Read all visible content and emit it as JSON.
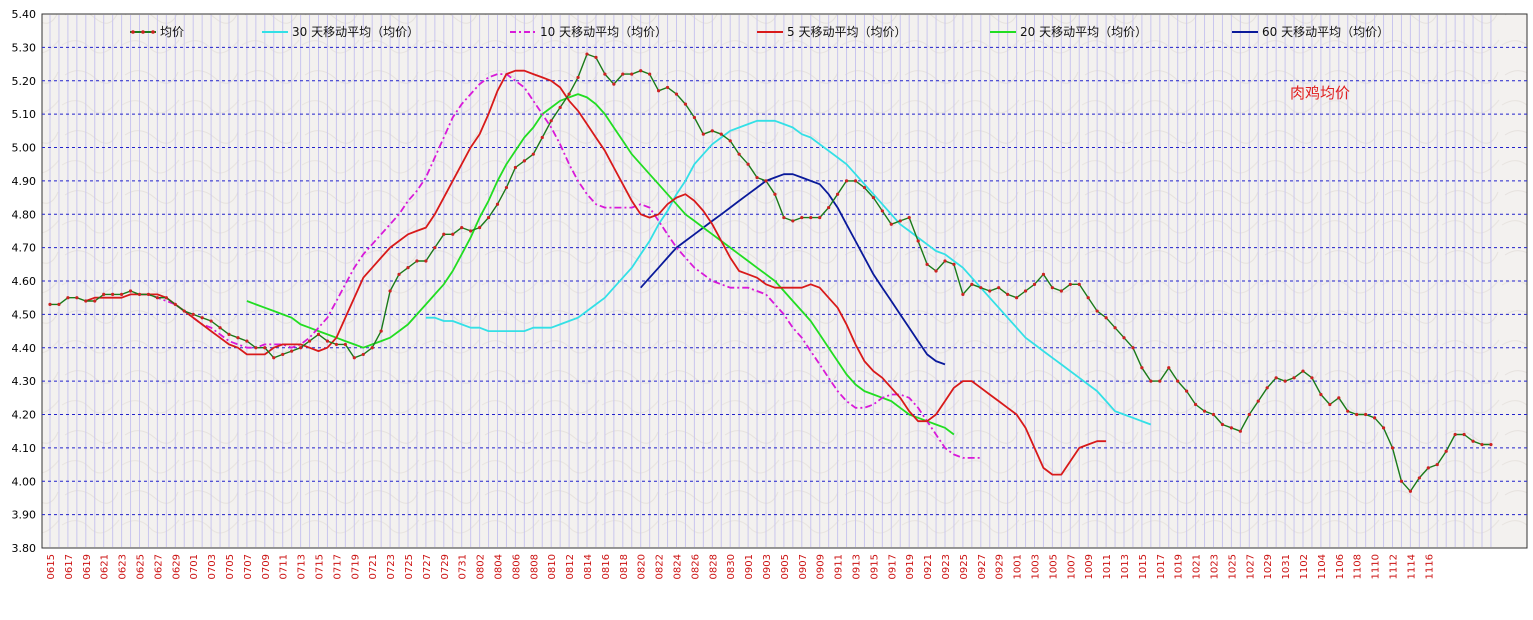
{
  "chart_data": {
    "type": "line",
    "annotation": "肉鸡均价",
    "y_ticks": [
      "5.40",
      "5.30",
      "5.20",
      "5.10",
      "5.00",
      "4.90",
      "4.80",
      "4.70",
      "4.60",
      "4.50",
      "4.40",
      "4.30",
      "4.20",
      "4.10",
      "4.00",
      "3.90",
      "3.80"
    ],
    "ylim": [
      3.8,
      5.4
    ],
    "grid": true,
    "legend_position": "top",
    "x_labels": [
      "0615",
      "0617",
      "0619",
      "0621",
      "0623",
      "0625",
      "0627",
      "0629",
      "0701",
      "0703",
      "0705",
      "0707",
      "0709",
      "0711",
      "0713",
      "0715",
      "0717",
      "0719",
      "0721",
      "0723",
      "0725",
      "0727",
      "0729",
      "0731",
      "0802",
      "0804",
      "0806",
      "0808",
      "0810",
      "0812",
      "0814",
      "0816",
      "0818",
      "0820",
      "0822",
      "0824",
      "0826",
      "0828",
      "0830",
      "0901",
      "0903",
      "0905",
      "0907",
      "0909",
      "0911",
      "0913",
      "0915",
      "0917",
      "0919",
      "0921",
      "0923",
      "0925",
      "0927",
      "0929",
      "1001",
      "1003",
      "1005",
      "1007",
      "1009",
      "1011",
      "1013",
      "1015",
      "1017",
      "1019",
      "1021",
      "1023",
      "1025",
      "1027",
      "1029",
      "1031",
      "1102",
      "1104",
      "1106",
      "1108",
      "1110",
      "1112",
      "1114",
      "1116"
    ],
    "series": [
      {
        "name": "均价",
        "color": "#1a7a1a",
        "style": "line-marker",
        "values": [
          4.53,
          4.53,
          4.55,
          4.55,
          4.54,
          4.54,
          4.56,
          4.56,
          4.56,
          4.57,
          4.56,
          4.56,
          4.55,
          4.55,
          4.53,
          4.51,
          4.5,
          4.49,
          4.48,
          4.46,
          4.44,
          4.43,
          4.42,
          4.4,
          4.4,
          4.37,
          4.38,
          4.39,
          4.4,
          4.42,
          4.44,
          4.42,
          4.41,
          4.41,
          4.37,
          4.38,
          4.4,
          4.45,
          4.57,
          4.62,
          4.64,
          4.66,
          4.66,
          4.7,
          4.74,
          4.74,
          4.76,
          4.75,
          4.76,
          4.79,
          4.83,
          4.88,
          4.94,
          4.96,
          4.98,
          5.03,
          5.08,
          5.12,
          5.16,
          5.21,
          5.28,
          5.27,
          5.22,
          5.19,
          5.22,
          5.22,
          5.23,
          5.22,
          5.17,
          5.18,
          5.16,
          5.13,
          5.09,
          5.04,
          5.05,
          5.04,
          5.02,
          4.98,
          4.95,
          4.91,
          4.9,
          4.86,
          4.79,
          4.78,
          4.79,
          4.79,
          4.79,
          4.82,
          4.86,
          4.9,
          4.9,
          4.88,
          4.85,
          4.81,
          4.77,
          4.78,
          4.79,
          4.72,
          4.65,
          4.63,
          4.66,
          4.65,
          4.56,
          4.59,
          4.58,
          4.57,
          4.58,
          4.56,
          4.55,
          4.57,
          4.59,
          4.62,
          4.58,
          4.57,
          4.59,
          4.59,
          4.55,
          4.51,
          4.49,
          4.46,
          4.43,
          4.4,
          4.34,
          4.3,
          4.3,
          4.34,
          4.3,
          4.27,
          4.23,
          4.21,
          4.2,
          4.17,
          4.16,
          4.15,
          4.2,
          4.24,
          4.28,
          4.31,
          4.3,
          4.31,
          4.33,
          4.31,
          4.26,
          4.23,
          4.25,
          4.21,
          4.2,
          4.2,
          4.19,
          4.16,
          4.1,
          4.0,
          3.97,
          4.01,
          4.04,
          4.05,
          4.09,
          4.14,
          4.14,
          4.12,
          4.11,
          4.11
        ]
      },
      {
        "name": "30 天移动平均（均价）",
        "color": "#33e0e6",
        "style": "solid",
        "start_index": 42,
        "values": [
          4.49,
          4.49,
          4.48,
          4.48,
          4.47,
          4.46,
          4.46,
          4.45,
          4.45,
          4.45,
          4.45,
          4.45,
          4.46,
          4.46,
          4.46,
          4.47,
          4.48,
          4.49,
          4.51,
          4.53,
          4.55,
          4.58,
          4.61,
          4.64,
          4.68,
          4.72,
          4.77,
          4.81,
          4.86,
          4.9,
          4.95,
          4.98,
          5.01,
          5.03,
          5.05,
          5.06,
          5.07,
          5.08,
          5.08,
          5.08,
          5.07,
          5.06,
          5.04,
          5.03,
          5.01,
          4.99,
          4.97,
          4.95,
          4.92,
          4.89,
          4.86,
          4.83,
          4.8,
          4.77,
          4.75,
          4.73,
          4.71,
          4.69,
          4.68,
          4.66,
          4.64,
          4.61,
          4.58,
          4.55,
          4.52,
          4.49,
          4.46,
          4.43,
          4.41,
          4.39,
          4.37,
          4.35,
          4.33,
          4.31,
          4.29,
          4.27,
          4.24,
          4.21,
          4.2,
          4.19,
          4.18,
          4.17
        ]
      },
      {
        "name": "10 天移动平均（均价）",
        "color": "#d81ad8",
        "style": "dash-dot",
        "start_index": 10,
        "values": [
          4.56,
          4.56,
          4.55,
          4.54,
          4.53,
          4.51,
          4.49,
          4.47,
          4.46,
          4.44,
          4.42,
          4.41,
          4.4,
          4.4,
          4.41,
          4.41,
          4.41,
          4.4,
          4.41,
          4.43,
          4.46,
          4.49,
          4.54,
          4.59,
          4.64,
          4.68,
          4.71,
          4.74,
          4.77,
          4.8,
          4.84,
          4.87,
          4.91,
          4.97,
          5.03,
          5.09,
          5.13,
          5.16,
          5.19,
          5.21,
          5.22,
          5.22,
          5.2,
          5.18,
          5.14,
          5.1,
          5.06,
          5.01,
          4.95,
          4.9,
          4.86,
          4.83,
          4.82,
          4.82,
          4.82,
          4.82,
          4.83,
          4.82,
          4.78,
          4.74,
          4.7,
          4.67,
          4.64,
          4.62,
          4.6,
          4.59,
          4.58,
          4.58,
          4.58,
          4.57,
          4.56,
          4.53,
          4.5,
          4.46,
          4.43,
          4.39,
          4.35,
          4.31,
          4.27,
          4.24,
          4.22,
          4.22,
          4.23,
          4.25,
          4.26,
          4.26,
          4.25,
          4.22,
          4.18,
          4.14,
          4.1,
          4.08,
          4.07,
          4.07,
          4.07
        ]
      },
      {
        "name": "5 天移动平均（均价）",
        "color": "#d81a1a",
        "style": "solid",
        "start_index": 4,
        "values": [
          4.54,
          4.55,
          4.55,
          4.55,
          4.55,
          4.56,
          4.56,
          4.56,
          4.56,
          4.55,
          4.53,
          4.51,
          4.49,
          4.47,
          4.45,
          4.43,
          4.41,
          4.4,
          4.38,
          4.38,
          4.38,
          4.4,
          4.41,
          4.41,
          4.41,
          4.4,
          4.39,
          4.4,
          4.43,
          4.49,
          4.55,
          4.61,
          4.64,
          4.67,
          4.7,
          4.72,
          4.74,
          4.75,
          4.76,
          4.8,
          4.85,
          4.9,
          4.95,
          5.0,
          5.04,
          5.1,
          5.17,
          5.22,
          5.23,
          5.23,
          5.22,
          5.21,
          5.2,
          5.18,
          5.14,
          5.11,
          5.07,
          5.03,
          4.99,
          4.94,
          4.89,
          4.84,
          4.8,
          4.79,
          4.8,
          4.83,
          4.85,
          4.86,
          4.84,
          4.81,
          4.77,
          4.72,
          4.67,
          4.63,
          4.62,
          4.61,
          4.59,
          4.58,
          4.58,
          4.58,
          4.58,
          4.59,
          4.58,
          4.55,
          4.52,
          4.47,
          4.41,
          4.36,
          4.33,
          4.31,
          4.28,
          4.25,
          4.21,
          4.18,
          4.18,
          4.2,
          4.24,
          4.28,
          4.3,
          4.3,
          4.28,
          4.26,
          4.24,
          4.22,
          4.2,
          4.16,
          4.1,
          4.04,
          4.02,
          4.02,
          4.06,
          4.1,
          4.11,
          4.12,
          4.12
        ]
      },
      {
        "name": "20 天移动平均（均价）",
        "color": "#22dd22",
        "style": "solid",
        "start_index": 22,
        "values": [
          4.54,
          4.53,
          4.52,
          4.51,
          4.5,
          4.49,
          4.47,
          4.46,
          4.45,
          4.44,
          4.43,
          4.42,
          4.41,
          4.4,
          4.41,
          4.42,
          4.43,
          4.45,
          4.47,
          4.5,
          4.53,
          4.56,
          4.59,
          4.63,
          4.68,
          4.73,
          4.79,
          4.84,
          4.9,
          4.95,
          4.99,
          5.03,
          5.06,
          5.1,
          5.12,
          5.14,
          5.15,
          5.16,
          5.15,
          5.13,
          5.1,
          5.06,
          5.02,
          4.98,
          4.95,
          4.92,
          4.89,
          4.86,
          4.83,
          4.8,
          4.78,
          4.76,
          4.74,
          4.72,
          4.7,
          4.68,
          4.66,
          4.64,
          4.62,
          4.6,
          4.57,
          4.54,
          4.51,
          4.48,
          4.44,
          4.4,
          4.36,
          4.32,
          4.29,
          4.27,
          4.26,
          4.25,
          4.24,
          4.22,
          4.2,
          4.19,
          4.18,
          4.17,
          4.16,
          4.14
        ]
      },
      {
        "name": "60 天移动平均（均价）",
        "color": "#0a1a9a",
        "style": "solid",
        "start_index": 66,
        "values": [
          4.58,
          4.61,
          4.64,
          4.67,
          4.7,
          4.72,
          4.74,
          4.76,
          4.78,
          4.8,
          4.82,
          4.84,
          4.86,
          4.88,
          4.9,
          4.91,
          4.92,
          4.92,
          4.91,
          4.9,
          4.89,
          4.86,
          4.82,
          4.77,
          4.72,
          4.67,
          4.62,
          4.58,
          4.54,
          4.5,
          4.46,
          4.42,
          4.38,
          4.36,
          4.35
        ]
      }
    ]
  }
}
